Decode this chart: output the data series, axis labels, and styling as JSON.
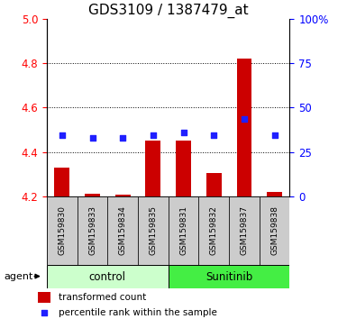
{
  "title": "GDS3109 / 1387479_at",
  "samples": [
    "GSM159830",
    "GSM159833",
    "GSM159834",
    "GSM159835",
    "GSM159831",
    "GSM159832",
    "GSM159837",
    "GSM159838"
  ],
  "bar_values": [
    4.33,
    4.21,
    4.205,
    4.45,
    4.45,
    4.305,
    4.82,
    4.22
  ],
  "bar_base": 4.2,
  "dot_values": [
    4.475,
    4.462,
    4.462,
    4.477,
    4.487,
    4.474,
    4.548,
    4.474
  ],
  "ylim": [
    4.2,
    5.0
  ],
  "y2lim": [
    0,
    100
  ],
  "yticks": [
    4.2,
    4.4,
    4.6,
    4.8,
    5.0
  ],
  "y2ticks": [
    0,
    25,
    50,
    75,
    100
  ],
  "y2ticklabels": [
    "0",
    "25",
    "50",
    "75",
    "100%"
  ],
  "bar_color": "#cc0000",
  "dot_color": "#1f1fff",
  "control_color": "#ccffcc",
  "sunitinib_color": "#44ee44",
  "sample_bg_color": "#cccccc",
  "control_label": "control",
  "sunitinib_label": "Sunitinib",
  "agent_label": "agent",
  "legend_bar_label": "transformed count",
  "legend_dot_label": "percentile rank within the sample",
  "title_fontsize": 11,
  "tick_fontsize": 8.5,
  "sample_fontsize": 6.5,
  "group_fontsize": 8.5,
  "legend_fontsize": 7.5,
  "agent_fontsize": 8
}
